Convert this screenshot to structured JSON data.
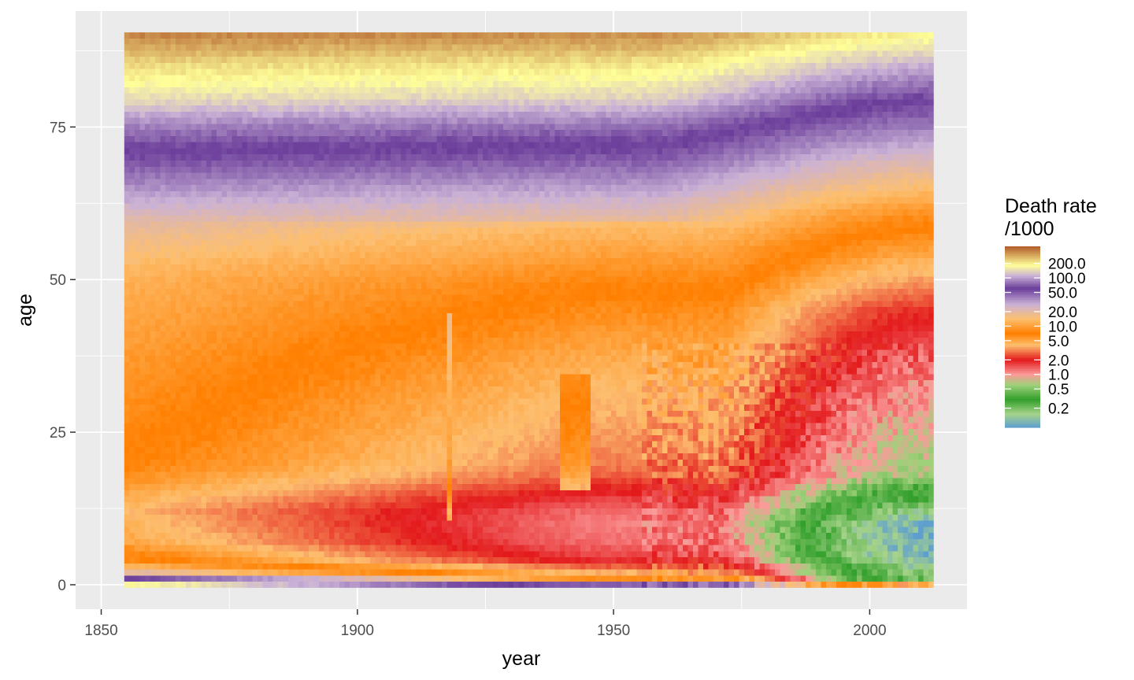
{
  "chart_data": {
    "type": "heatmap",
    "xlabel": "year",
    "ylabel": "age",
    "xlim": [
      1845,
      2019
    ],
    "ylim": [
      -4,
      94
    ],
    "x_range": [
      1855,
      2012
    ],
    "y_range": [
      0,
      90
    ],
    "x_ticks": [
      1850,
      1900,
      1950,
      2000
    ],
    "y_ticks": [
      0,
      25,
      50,
      75
    ],
    "grid": true,
    "panel_background": "#ebebeb",
    "legend": {
      "title_line1": "Death rate",
      "title_line2": "/1000",
      "placement": "right",
      "labels": [
        "200.0",
        "100.0",
        "50.0",
        "20.0",
        "10.0",
        "5.0",
        "2.0",
        "1.0",
        "0.5",
        "0.2"
      ],
      "values": [
        200,
        100,
        50,
        20,
        10,
        5,
        2,
        1,
        0.5,
        0.2
      ],
      "log_min": 0.08,
      "log_max": 450
    },
    "colour_scale": [
      {
        "v": 0.08,
        "c": "#5e9fcf"
      },
      {
        "v": 0.15,
        "c": "#a6d38a"
      },
      {
        "v": 0.3,
        "c": "#33a02c"
      },
      {
        "v": 0.6,
        "c": "#9fd07a"
      },
      {
        "v": 1.0,
        "c": "#fb9a99"
      },
      {
        "v": 2.0,
        "c": "#e31a1c"
      },
      {
        "v": 4.0,
        "c": "#fdbf6f"
      },
      {
        "v": 7.0,
        "c": "#ff7f00"
      },
      {
        "v": 14.0,
        "c": "#fdbf6f"
      },
      {
        "v": 28.0,
        "c": "#cab2d6"
      },
      {
        "v": 60.0,
        "c": "#6a3d9a"
      },
      {
        "v": 110.0,
        "c": "#cab2d6"
      },
      {
        "v": 180.0,
        "c": "#ffff99"
      },
      {
        "v": 450.0,
        "c": "#b15928"
      }
    ],
    "age_profile_1855": [
      [
        0,
        180
      ],
      [
        1,
        60
      ],
      [
        2,
        20
      ],
      [
        4,
        8
      ],
      [
        7,
        5
      ],
      [
        12,
        4
      ],
      [
        20,
        7
      ],
      [
        35,
        9
      ],
      [
        50,
        12
      ],
      [
        58,
        18
      ],
      [
        65,
        35
      ],
      [
        70,
        55
      ],
      [
        75,
        85
      ],
      [
        80,
        150
      ],
      [
        85,
        220
      ],
      [
        90,
        350
      ]
    ],
    "age_profile_2012": [
      [
        0,
        4
      ],
      [
        1,
        0.2
      ],
      [
        5,
        0.1
      ],
      [
        10,
        0.1
      ],
      [
        15,
        0.3
      ],
      [
        18,
        0.6
      ],
      [
        25,
        0.8
      ],
      [
        35,
        1.2
      ],
      [
        45,
        2.2
      ],
      [
        50,
        3.5
      ],
      [
        60,
        8
      ],
      [
        65,
        14
      ],
      [
        70,
        24
      ],
      [
        75,
        40
      ],
      [
        80,
        65
      ],
      [
        85,
        110
      ],
      [
        90,
        190
      ]
    ]
  }
}
